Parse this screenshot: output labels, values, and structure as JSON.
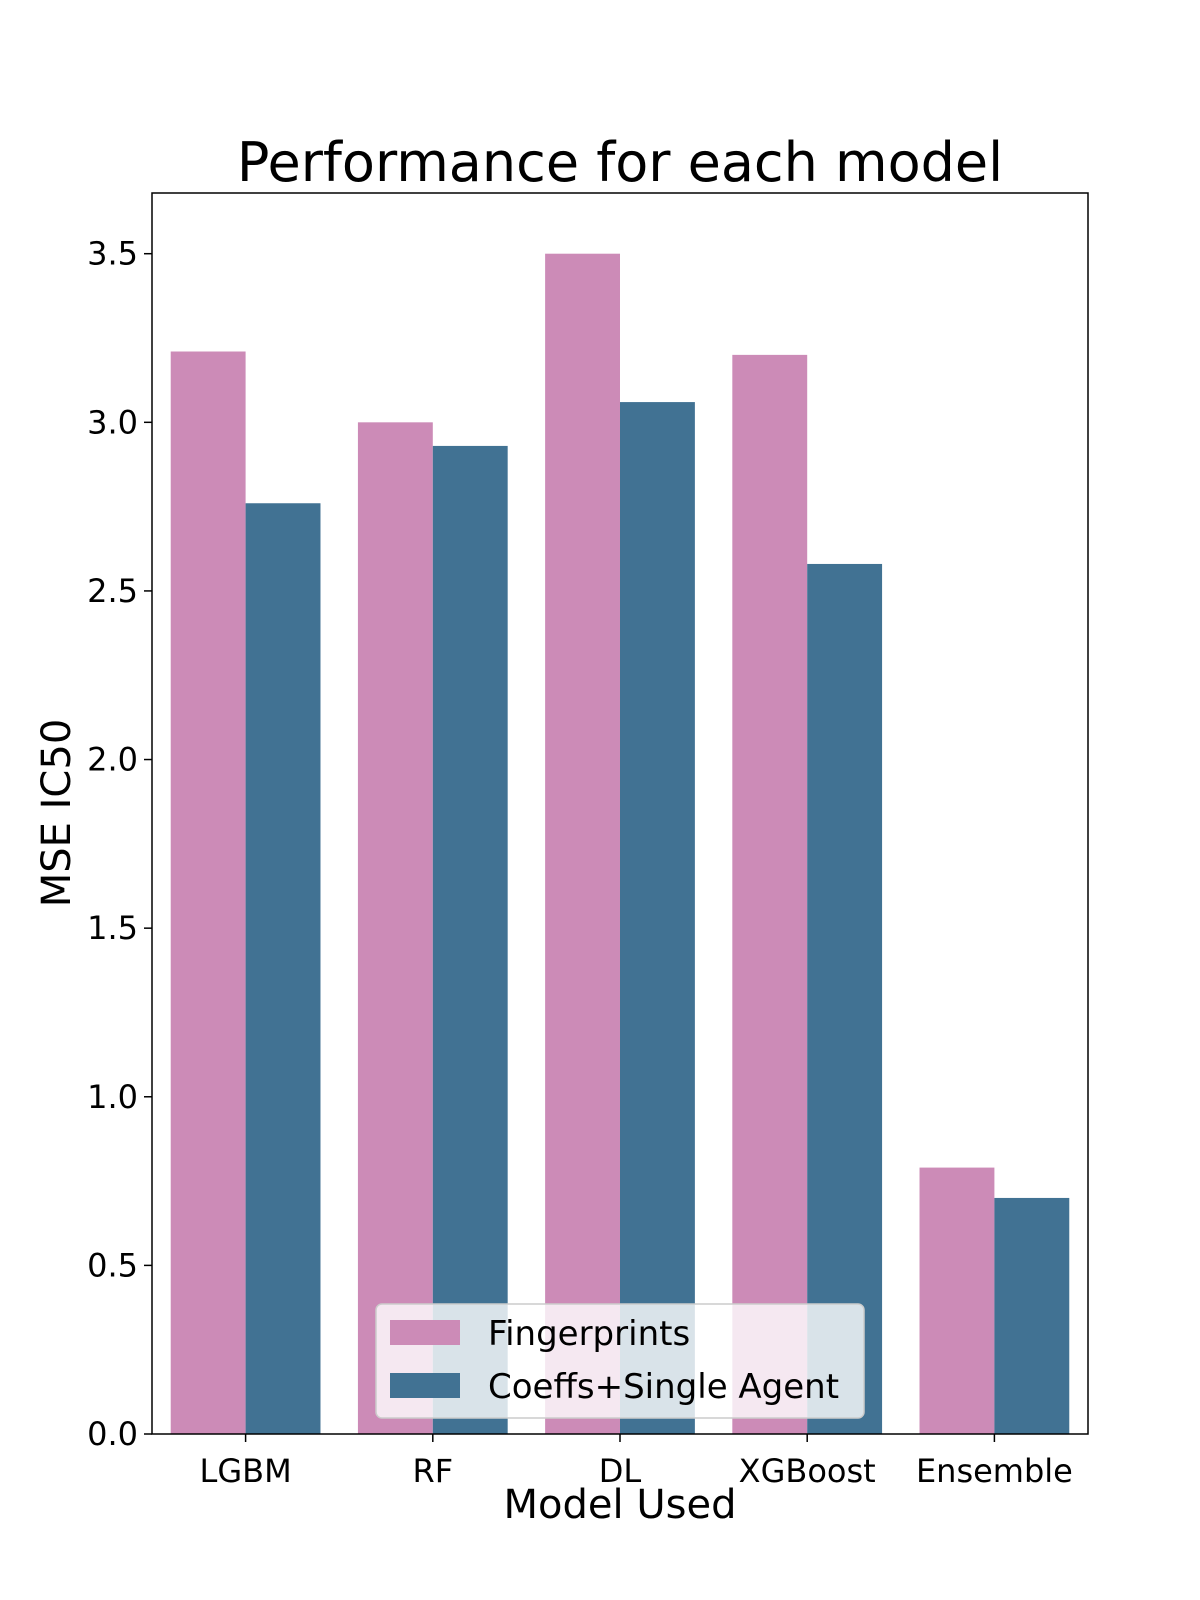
{
  "chart_data": {
    "type": "bar",
    "title": "Performance for each model",
    "xlabel": "Model Used",
    "ylabel": "MSE IC50",
    "categories": [
      "LGBM",
      "RF",
      "DL",
      "XGBoost",
      "Ensemble"
    ],
    "series": [
      {
        "name": "Fingerprints",
        "color": "#cc8bb7",
        "values": [
          3.21,
          3.0,
          3.5,
          3.2,
          0.79
        ]
      },
      {
        "name": "Coeffs+Single Agent",
        "color": "#417293",
        "values": [
          2.76,
          2.93,
          3.06,
          2.58,
          0.7
        ]
      }
    ],
    "ylim": [
      0,
      3.68
    ],
    "yticks": [
      "0.0",
      "0.5",
      "1.0",
      "1.5",
      "2.0",
      "2.5",
      "3.0",
      "3.5"
    ],
    "grid": false,
    "legend_position": "lower center"
  }
}
